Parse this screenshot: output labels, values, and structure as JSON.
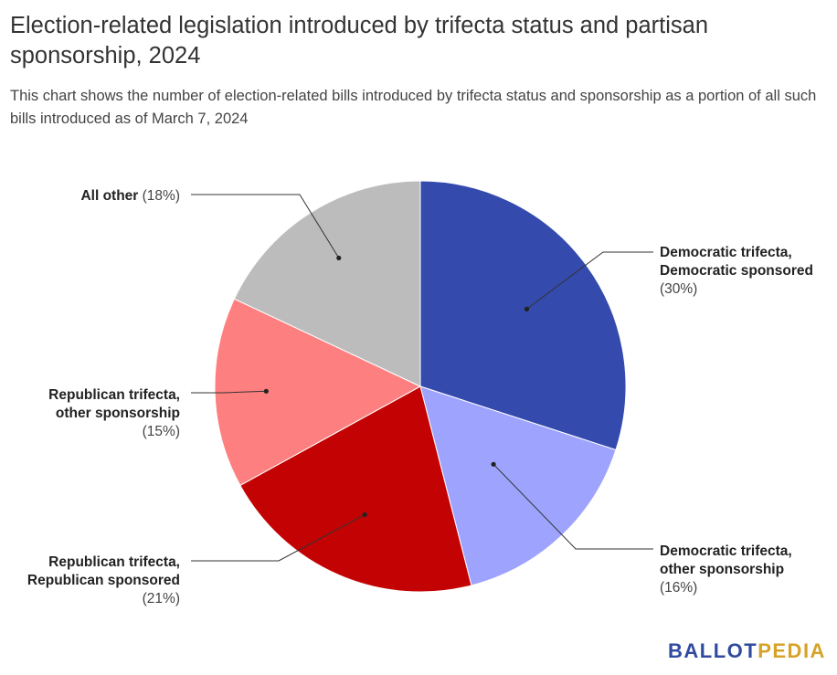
{
  "header": {
    "title": "Election-related legislation introduced by trifecta status and partisan sponsorship, 2024",
    "subtitle": "This chart shows the number of election-related bills introduced by trifecta status and sponsorship as a portion of all such bills introduced as of March 7, 2024"
  },
  "chart_data": {
    "type": "pie",
    "title": "Election-related legislation introduced by trifecta status and partisan sponsorship, 2024",
    "slices": [
      {
        "lines": [
          "Democratic trifecta,",
          "Democratic sponsored"
        ],
        "pct_label": "(30%)",
        "value": 30,
        "color": "#344aad"
      },
      {
        "lines": [
          "Democratic trifecta,",
          "other sponsorship"
        ],
        "pct_label": "(16%)",
        "value": 16,
        "color": "#9ea4fd"
      },
      {
        "lines": [
          "Republican trifecta,",
          "Republican sponsored"
        ],
        "pct_label": "(21%)",
        "value": 21,
        "color": "#c30303"
      },
      {
        "lines": [
          "Republican trifecta,",
          "other sponsorship"
        ],
        "pct_label": "(15%)",
        "value": 15,
        "color": "#fe7f7f"
      },
      {
        "lines": [
          "All other"
        ],
        "pct_label": "(18%)",
        "value": 18,
        "color": "#bcbcbc"
      }
    ],
    "legend": "none",
    "start_angle": "12 o'clock",
    "direction": "clockwise"
  },
  "brand": {
    "part1": "BALLOT",
    "part2": "PEDIA"
  }
}
